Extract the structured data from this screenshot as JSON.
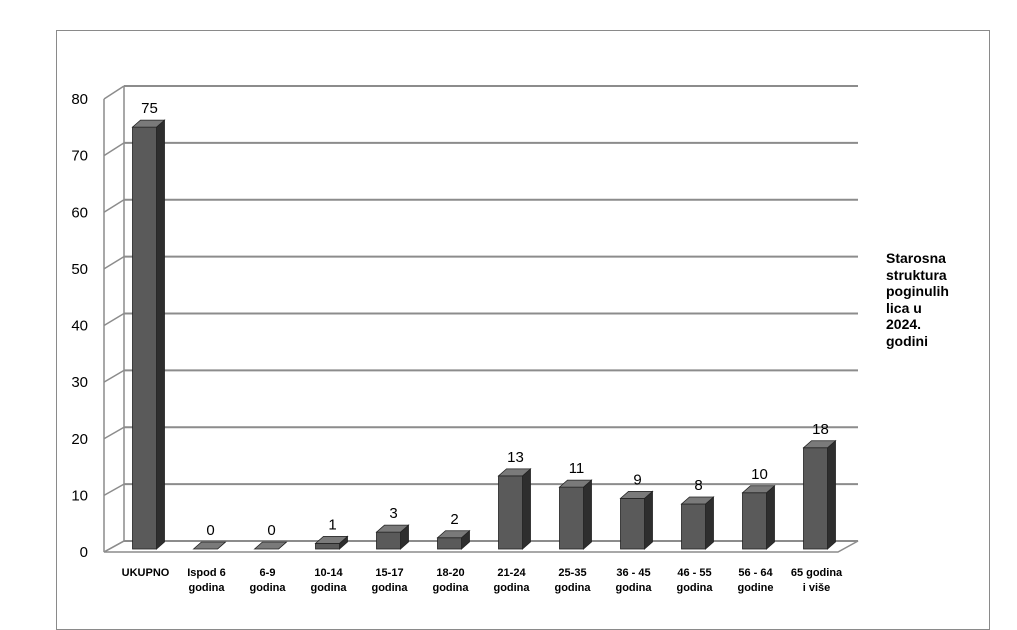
{
  "chart_data": {
    "type": "bar",
    "categories": [
      [
        "UKUPNO"
      ],
      [
        "Ispod 6",
        "godina"
      ],
      [
        "6-9",
        "godina"
      ],
      [
        "10-14",
        "godina"
      ],
      [
        "15-17",
        "godina"
      ],
      [
        "18-20",
        "godina"
      ],
      [
        "21-24",
        "godina"
      ],
      [
        "25-35",
        "godina"
      ],
      [
        "36 - 45",
        "godina"
      ],
      [
        "46 - 55",
        "godina"
      ],
      [
        "56 - 64",
        "godine"
      ],
      [
        "65 godina",
        "i više"
      ]
    ],
    "values": [
      75,
      0,
      0,
      1,
      3,
      2,
      13,
      11,
      9,
      8,
      10,
      18
    ],
    "data_labels": [
      "75",
      "0",
      "0",
      "1",
      "3",
      "2",
      "13",
      "11",
      "9",
      "8",
      "10",
      "18"
    ],
    "series": [
      {
        "name": "Starosna struktura poginulih lica u 2024. godini",
        "values": [
          75,
          0,
          0,
          1,
          3,
          2,
          13,
          11,
          9,
          8,
          10,
          18
        ]
      }
    ],
    "legend_lines": [
      "Starosna",
      "struktura",
      "poginulih",
      "lica u",
      "2024.",
      "godini"
    ],
    "y_ticks": [
      "0",
      "10",
      "20",
      "30",
      "40",
      "50",
      "60",
      "70",
      "80"
    ],
    "ylim": [
      0,
      80
    ],
    "grid": true,
    "legend_position": "right",
    "colors": {
      "bar_front": "#5a5a5a",
      "bar_side": "#2e2e2e",
      "bar_top": "#7a7a7a",
      "grid": "#8c8c8c"
    }
  }
}
